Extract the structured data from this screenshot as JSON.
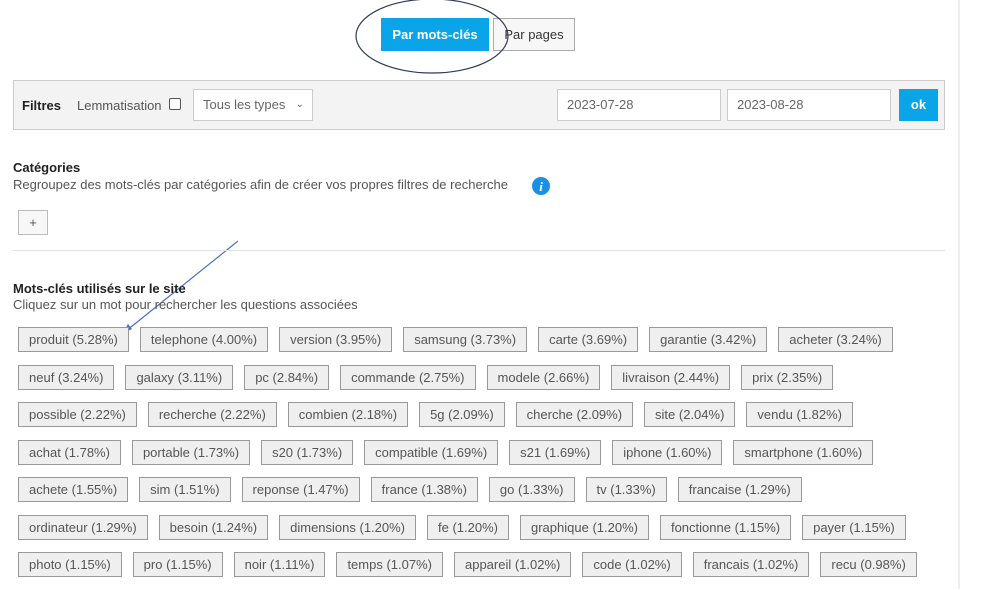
{
  "view_toggle": {
    "keywords": "Par mots-clés",
    "pages": "Par pages"
  },
  "filters": {
    "title": "Filtres",
    "lemmatisation": "Lemmatisation",
    "type_select": "Tous les types",
    "date_from": "2023-07-28",
    "date_to": "2023-08-28",
    "submit": "ok"
  },
  "categories": {
    "title": "Catégories",
    "subtitle": "Regroupez des mots-clés par catégories afin de créer vos propres filtres de recherche",
    "add_button": "+"
  },
  "keywords": {
    "title": "Mots-clés utilisés sur le site",
    "subtitle": "Cliquez sur un mot pour rechercher les questions associées",
    "rows": [
      [
        "produit (5.28%)",
        "telephone (4.00%)",
        "version (3.95%)",
        "samsung (3.73%)",
        "carte (3.69%)",
        "garantie (3.42%)",
        "acheter (3.24%)"
      ],
      [
        "neuf (3.24%)",
        "galaxy (3.11%)",
        "pc (2.84%)",
        "commande (2.75%)",
        "modele (2.66%)",
        "livraison (2.44%)",
        "prix (2.35%)"
      ],
      [
        "possible (2.22%)",
        "recherche (2.22%)",
        "combien (2.18%)",
        "5g (2.09%)",
        "cherche (2.09%)",
        "site (2.04%)",
        "vendu (1.82%)"
      ],
      [
        "achat (1.78%)",
        "portable (1.73%)",
        "s20 (1.73%)",
        "compatible (1.69%)",
        "s21 (1.69%)",
        "iphone (1.60%)",
        "smartphone (1.60%)"
      ],
      [
        "achete (1.55%)",
        "sim (1.51%)",
        "reponse (1.47%)",
        "france (1.38%)",
        "go (1.33%)",
        "tv (1.33%)",
        "francaise (1.29%)"
      ],
      [
        "ordinateur (1.29%)",
        "besoin (1.24%)",
        "dimensions (1.20%)",
        "fe (1.20%)",
        "graphique (1.20%)",
        "fonctionne (1.15%)",
        "payer (1.15%)"
      ],
      [
        "photo (1.15%)",
        "pro (1.15%)",
        "noir (1.11%)",
        "temps (1.07%)",
        "appareil (1.02%)",
        "code (1.02%)",
        "francais (1.02%)",
        "recu (0.98%)"
      ]
    ]
  }
}
